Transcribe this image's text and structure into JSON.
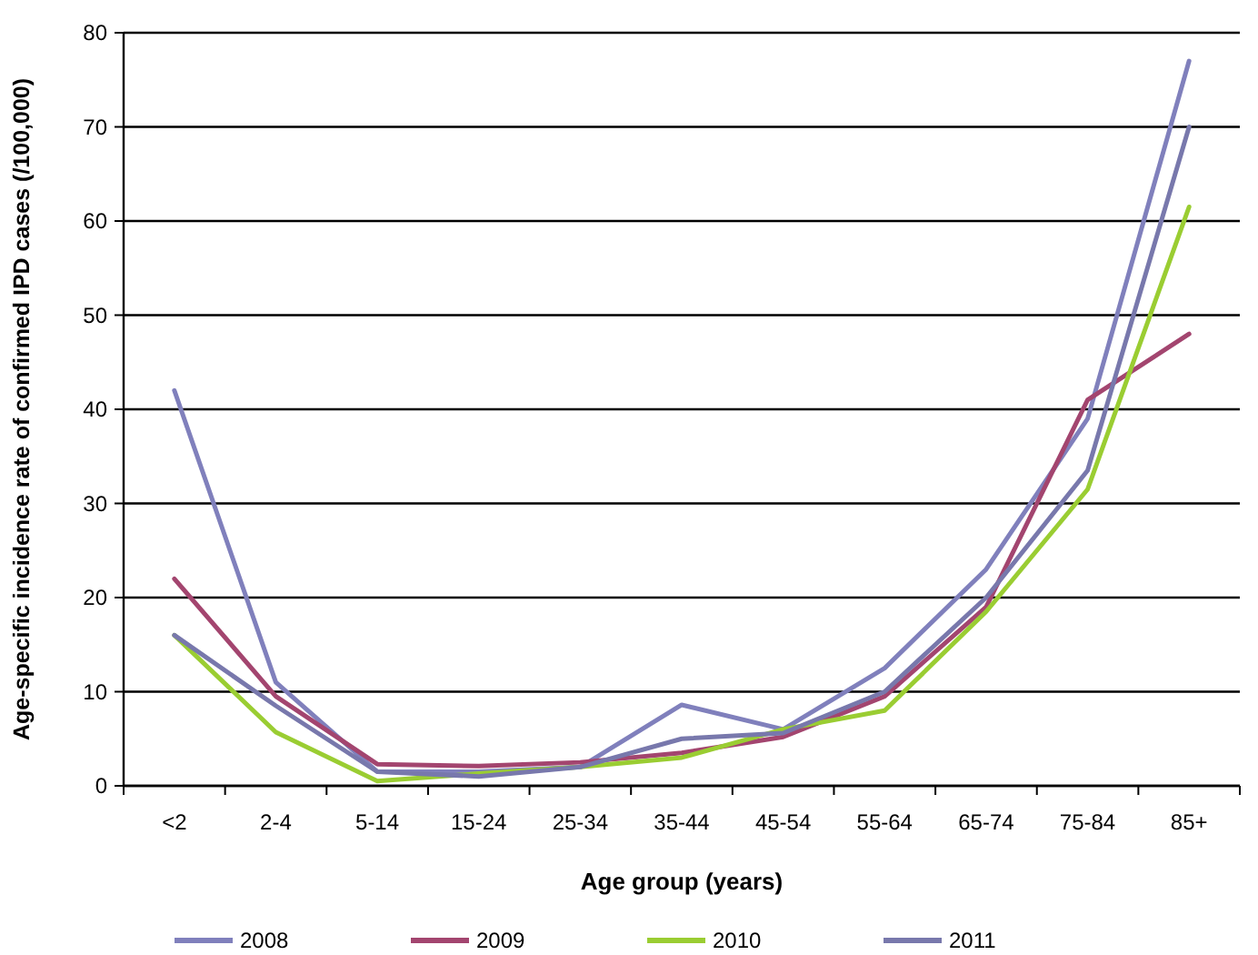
{
  "chart_data": {
    "type": "line",
    "xlabel": "Age group (years)",
    "ylabel": "Age-specific incidence rate of confirmed IPD cases (/100,000)",
    "categories": [
      "<2",
      "2-4",
      "5-14",
      "15-24",
      "25-34",
      "35-44",
      "45-54",
      "55-64",
      "65-74",
      "75-84",
      "85+"
    ],
    "series": [
      {
        "name": "2008",
        "color": "#8080bc",
        "values": [
          42,
          11,
          1.5,
          1.5,
          2,
          8.6,
          6,
          12.5,
          23,
          39,
          77
        ]
      },
      {
        "name": "2009",
        "color": "#a3456f",
        "values": [
          22,
          9.5,
          2.3,
          2.1,
          2.5,
          3.5,
          5.2,
          9.5,
          19,
          41,
          48
        ]
      },
      {
        "name": "2010",
        "color": "#9acd32",
        "values": [
          16,
          5.7,
          0.5,
          1.3,
          2,
          3,
          6,
          8,
          18.5,
          31.5,
          61.5
        ]
      },
      {
        "name": "2011",
        "color": "#7878ac",
        "values": [
          16,
          8.5,
          1.5,
          1,
          2,
          5,
          5.6,
          10,
          20,
          33.5,
          70
        ]
      }
    ],
    "ylim": [
      0,
      80
    ],
    "yticks": [
      0,
      10,
      20,
      30,
      40,
      50,
      60,
      70,
      80
    ],
    "grid": "y",
    "legend": "bottom",
    "marker": "none",
    "line_style": "solid"
  }
}
